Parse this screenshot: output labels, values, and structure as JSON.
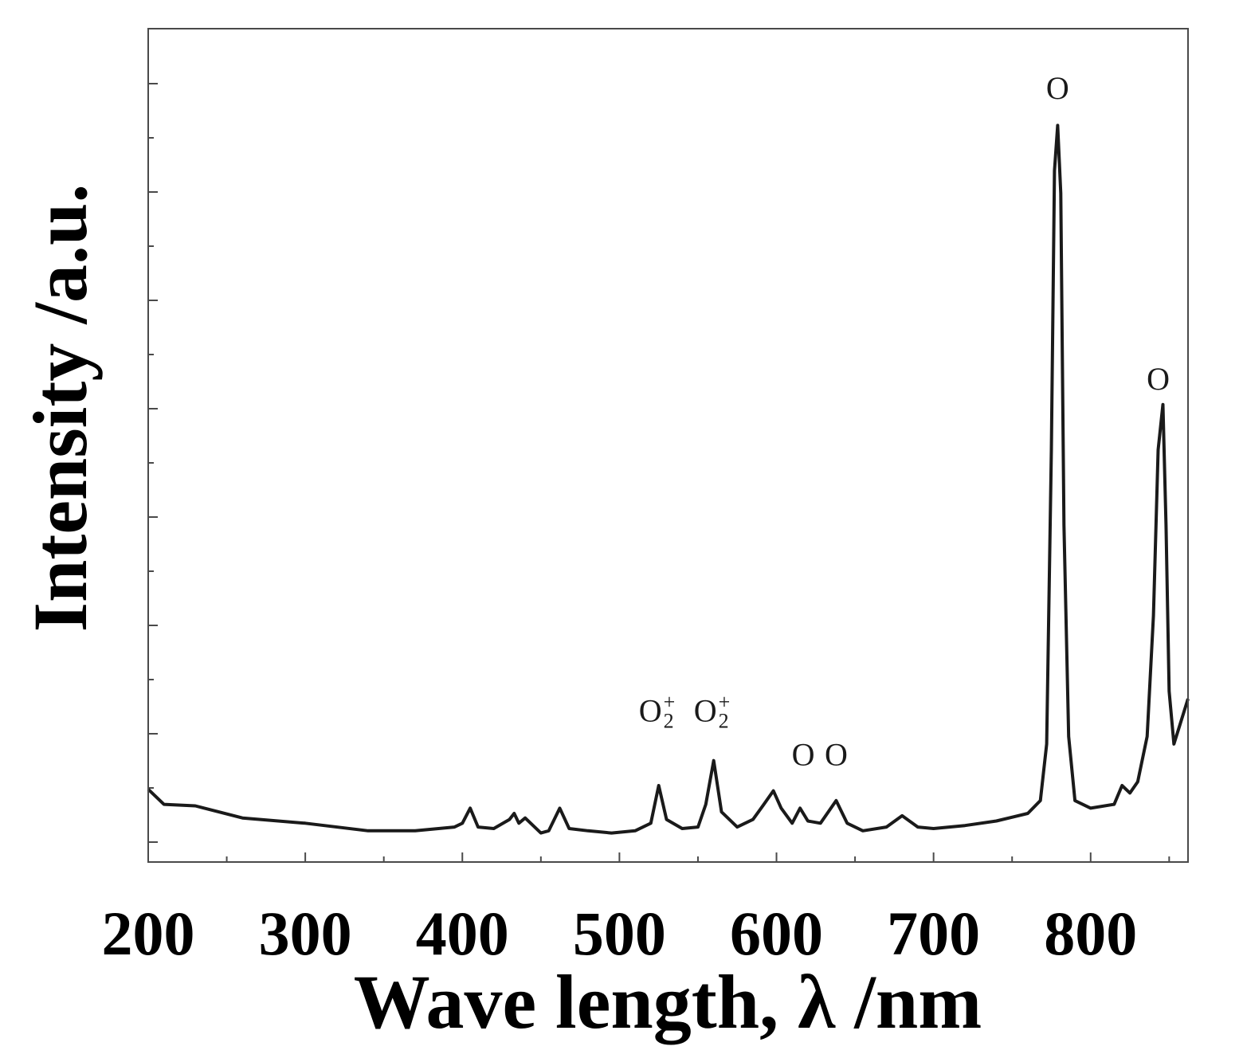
{
  "chart_data": {
    "type": "line",
    "title": "",
    "xlabel": "Wave length, λ /nm",
    "ylabel": "Intensity /a.u.",
    "xlim": [
      200,
      862
    ],
    "ylim": [
      0,
      1000
    ],
    "x_ticks": [
      200,
      300,
      400,
      500,
      600,
      700,
      800
    ],
    "x_tick_labels": [
      "200",
      "300",
      "400",
      "500",
      "600",
      "700",
      "800"
    ],
    "y_tick_labels_shown": false,
    "grid": false,
    "legend": "none",
    "line_color": "#1a1a1a",
    "series": [
      {
        "x": [
          200,
          210,
          230,
          260,
          300,
          340,
          370,
          395,
          400,
          405,
          410,
          420,
          430,
          433,
          436,
          440,
          450,
          455,
          462,
          468,
          480,
          495,
          510,
          520,
          525,
          530,
          540,
          550,
          555,
          560,
          565,
          575,
          585,
          592,
          598,
          603,
          610,
          615,
          620,
          628,
          638,
          645,
          655,
          670,
          680,
          690,
          700,
          720,
          740,
          760,
          768,
          772,
          775,
          777,
          779,
          781,
          783,
          786,
          790,
          800,
          815,
          820,
          825,
          830,
          836,
          840,
          843,
          846,
          848,
          850,
          853,
          856,
          862
        ],
        "y": [
          70,
          50,
          48,
          32,
          25,
          15,
          15,
          20,
          25,
          45,
          20,
          18,
          30,
          38,
          25,
          32,
          12,
          15,
          45,
          18,
          15,
          12,
          15,
          25,
          75,
          30,
          18,
          20,
          50,
          108,
          40,
          20,
          30,
          50,
          68,
          45,
          25,
          45,
          28,
          25,
          55,
          25,
          15,
          20,
          35,
          20,
          18,
          22,
          28,
          38,
          55,
          130,
          520,
          890,
          950,
          860,
          420,
          140,
          55,
          45,
          50,
          75,
          65,
          80,
          140,
          300,
          520,
          580,
          420,
          200,
          130,
          150,
          190
        ]
      }
    ],
    "annotations": [
      {
        "label": "O",
        "sub": "",
        "sup": "",
        "x": 779,
        "y": 985
      },
      {
        "label": "O",
        "sub": "",
        "sup": "",
        "x": 843,
        "y": 600
      },
      {
        "label": "O",
        "sub": "2",
        "sup": "+",
        "x": 527,
        "y": 160
      },
      {
        "label": "O",
        "sub": "2",
        "sup": "+",
        "x": 562,
        "y": 160
      },
      {
        "label": "O",
        "sub": "",
        "sup": "",
        "x": 617,
        "y": 102
      },
      {
        "label": "O",
        "sub": "",
        "sup": "",
        "x": 638,
        "y": 102
      }
    ]
  }
}
